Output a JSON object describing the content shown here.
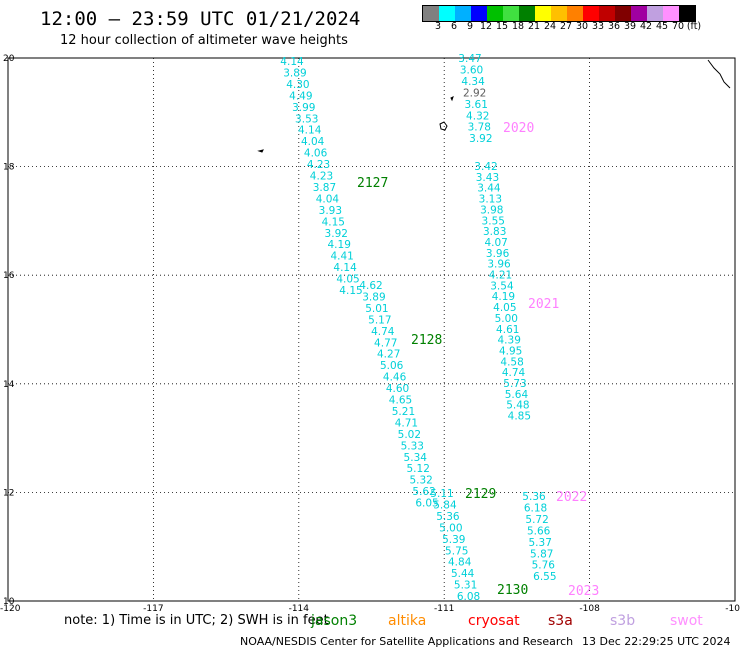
{
  "title": "12:00 — 23:59 UTC 01/21/2024",
  "subtitle": "12 hour collection of altimeter wave heights",
  "colorbar": {
    "colors": [
      "#808080",
      "#00ffff",
      "#00b0ff",
      "#0000ff",
      "#00c000",
      "#40e040",
      "#008000",
      "#ffff00",
      "#ffc000",
      "#ff8000",
      "#ff0000",
      "#c00000",
      "#800000",
      "#a000a0",
      "#c0a0e0",
      "#ff90ff",
      "#000000"
    ],
    "labels": [
      "3",
      "6",
      "9",
      "12",
      "15",
      "18",
      "21",
      "24",
      "27",
      "30",
      "33",
      "36",
      "39",
      "42",
      "45",
      "70",
      "(ft)"
    ]
  },
  "axes": {
    "lon_ticks": [
      "-120",
      "-117",
      "-114",
      "-111",
      "-108",
      "-10"
    ],
    "lat_ticks": [
      "20",
      "18",
      "16",
      "14",
      "12",
      "10"
    ]
  },
  "map_data": {
    "lon_range": [
      -120,
      -105
    ],
    "lat_range": [
      10,
      20
    ],
    "passes": [
      {
        "label": "2127",
        "label_color": "#008000",
        "values": [
          "4.14",
          "3.89",
          "4.30",
          "4.49",
          "3.99",
          "3.53",
          "4.14",
          "4.04",
          "4.06",
          "4.23",
          "4.23",
          "3.87",
          "4.04",
          "3.93",
          "4.15",
          "3.92",
          "4.19",
          "4.41",
          "4.14",
          "4.05",
          "4.15"
        ]
      },
      {
        "label": "2128",
        "label_color": "#008000",
        "values": [
          "4.62",
          "3.89",
          "5.01",
          "5.17",
          "4.74",
          "4.77",
          "4.27",
          "5.06",
          "4.46",
          "4.60",
          "4.65",
          "5.21",
          "4.71",
          "5.02",
          "5.33",
          "5.34",
          "5.12",
          "5.32",
          "5.62",
          "6.05"
        ]
      },
      {
        "label": "2129",
        "label_color": "#008000",
        "values": [
          "5.11",
          "5.84",
          "5.36",
          "5.00",
          "5.39",
          "5.75",
          "4.84",
          "5.44",
          "5.31",
          "6.08"
        ]
      },
      {
        "label": "2130",
        "label_color": "#008000",
        "values": []
      },
      {
        "label": "2020",
        "label_color": "#ff80ff",
        "values": [
          "3.47",
          "3.60",
          "4.34",
          "2.92",
          "3.61",
          "4.32",
          "3.78",
          "3.92"
        ]
      },
      {
        "label": "2021",
        "label_color": "#ff80ff",
        "values": [
          "3.42",
          "3.43",
          "3.44",
          "3.13",
          "3.98",
          "3.55",
          "3.83",
          "4.07",
          "3.96",
          "3.96",
          "4.21",
          "3.54",
          "4.19",
          "4.05",
          "5.00",
          "4.61",
          "4.39",
          "4.95",
          "4.58",
          "4.74",
          "5.73",
          "5.64",
          "5.48",
          "4.85"
        ]
      },
      {
        "label": "2022",
        "label_color": "#ff80ff",
        "values": [
          "5.36",
          "6.18",
          "5.72",
          "5.66",
          "5.37",
          "5.87",
          "5.76",
          "6.55"
        ]
      },
      {
        "label": "2023",
        "label_color": "#ff80ff",
        "values": []
      }
    ]
  },
  "note": "note:  1) Time is in UTC; 2) SWH is in feet",
  "satellites": [
    {
      "name": "jason3",
      "color": "#008000"
    },
    {
      "name": "altika",
      "color": "#ff8c00"
    },
    {
      "name": "cryosat",
      "color": "#ff0000"
    },
    {
      "name": "s3a",
      "color": "#a00000"
    },
    {
      "name": "s3b",
      "color": "#c0a0e0"
    },
    {
      "name": "swot",
      "color": "#ff90ff"
    }
  ],
  "credit": "NOAA/NESDIS Center for Satellite Applications and Research",
  "timestamp": "13 Dec 22:29:25 UTC 2024"
}
